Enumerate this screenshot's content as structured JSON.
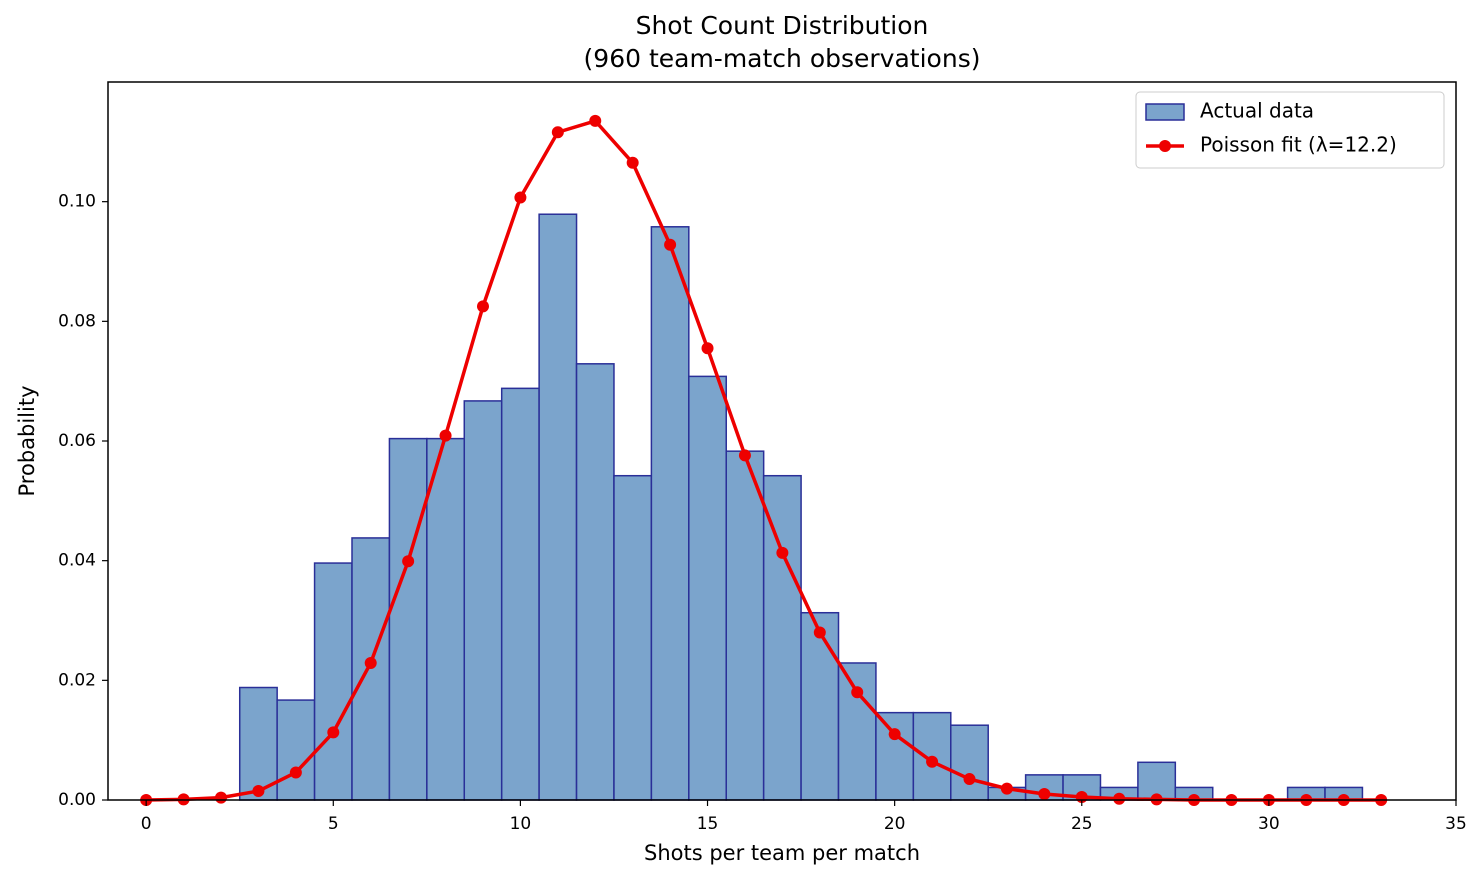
{
  "chart_data": {
    "type": "histogram",
    "title": "Shot Count Distribution",
    "subtitle": "(960 team-match observations)",
    "xlabel": "Shots per team per match",
    "ylabel": "Probability",
    "xlim": [
      -1.02,
      35
    ],
    "ylim": [
      0,
      0.12
    ],
    "xticks": [
      0,
      5,
      10,
      15,
      20,
      25,
      30,
      35
    ],
    "yticks": [
      {
        "value": 0,
        "label": "0.00"
      },
      {
        "value": 0.02,
        "label": "0.02"
      },
      {
        "value": 0.04,
        "label": "0.04"
      },
      {
        "value": 0.06,
        "label": "0.06"
      },
      {
        "value": 0.08,
        "label": "0.08"
      },
      {
        "value": 0.1,
        "label": "0.10"
      }
    ],
    "legend": "upper right",
    "series": [
      {
        "name": "Actual data",
        "type": "histogram",
        "color": "#7ba4cc",
        "edgecolor": "#2a2f98",
        "bins": [
          2.5,
          3.5,
          4.5,
          5.5,
          6.5,
          7.5,
          8.5,
          9.5,
          10.5,
          11.5,
          12.5,
          13.5,
          14.5,
          15.5,
          16.5,
          17.5,
          18.5,
          19.5,
          20.5,
          21.5,
          22.5,
          23.5,
          24.5,
          25.5,
          26.5,
          27.5,
          28.5,
          29.5,
          30.5,
          31.5,
          32.5
        ],
        "values": [
          0.0188,
          0.0167,
          0.0396,
          0.0438,
          0.0604,
          0.0604,
          0.0667,
          0.0688,
          0.0979,
          0.0729,
          0.0542,
          0.0958,
          0.0708,
          0.0583,
          0.0542,
          0.0313,
          0.0229,
          0.0146,
          0.0146,
          0.0125,
          0.0021,
          0.0042,
          0.0042,
          0.0021,
          0.0063,
          0.0021,
          0,
          0,
          0.0021,
          0.0021
        ]
      },
      {
        "name": "Poisson fit (λ=12.2)",
        "type": "line",
        "color": "#ee0000",
        "x": [
          0,
          1,
          2,
          3,
          4,
          5,
          6,
          7,
          8,
          9,
          10,
          11,
          12,
          13,
          14,
          15,
          16,
          17,
          18,
          19,
          20,
          21,
          22,
          23,
          24,
          25,
          26,
          27,
          28,
          29,
          30,
          31,
          32,
          33
        ],
        "values": [
          0,
          0.0001,
          0.0004,
          0.0015,
          0.0046,
          0.0113,
          0.0229,
          0.0399,
          0.0609,
          0.0825,
          0.1007,
          0.1116,
          0.1135,
          0.1065,
          0.0928,
          0.0755,
          0.0576,
          0.0413,
          0.028,
          0.018,
          0.011,
          0.0064,
          0.0035,
          0.0019,
          0.001,
          0.0005,
          0.0002,
          0.0001,
          0,
          0,
          0,
          0,
          0,
          0
        ]
      }
    ]
  }
}
